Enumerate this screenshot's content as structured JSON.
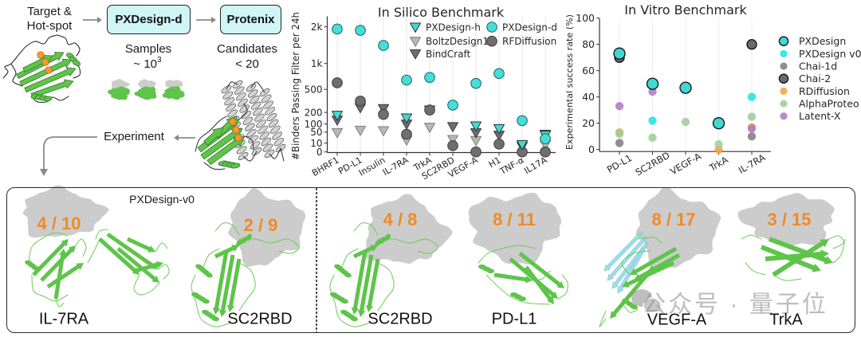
{
  "pipeline": {
    "target_line1": "Target &",
    "target_line2": "Hot-spot",
    "step1": "PXDesign-d",
    "step2": "Protenix",
    "samples_label": "Samples",
    "samples_value": "~ 10",
    "samples_exponent": "3",
    "candidates_label": "Candidates",
    "candidates_value": "< 20",
    "experiment_label": "Experiment"
  },
  "colors": {
    "box_fill": "#cff5f6",
    "arrow": "#8a8a8a",
    "hotspot": "#f39a2b",
    "binder_green": "#5ec44a",
    "target_gray": "#cccccc",
    "hit_fraction": "#f08a24",
    "vegf_partner": "#8fd9e6"
  },
  "results_panel": {
    "groups": [
      {
        "label": "PXDesign-v0",
        "items": [
          {
            "target": "IL-7RA",
            "hits_label": "4 / 10",
            "successes": 4,
            "tested": 10
          },
          {
            "target": "SC2RBD",
            "hits_label": "2 / 9",
            "successes": 2,
            "tested": 9
          }
        ]
      },
      {
        "label": null,
        "items": [
          {
            "target": "SC2RBD",
            "hits_label": "4 / 8",
            "successes": 4,
            "tested": 8
          },
          {
            "target": "PD-L1",
            "hits_label": "8 / 11",
            "successes": 8,
            "tested": 11
          },
          {
            "target": "VEGF-A",
            "hits_label": "8 / 17",
            "successes": 8,
            "tested": 17
          },
          {
            "target": "TrkA",
            "hits_label": "3 / 15",
            "successes": 3,
            "tested": 15
          }
        ]
      }
    ]
  },
  "watermark": {
    "icon": "wechat-icon",
    "text": "公众号 · 量子位"
  },
  "chart_data": [
    {
      "type": "scatter",
      "title": "In Silico Benchmark",
      "xlabel": "",
      "ylabel": "#Binders Passing Filter per 24h",
      "yscale": "sqrt",
      "ylim": [
        0,
        2350
      ],
      "yticks": [
        0,
        10,
        50,
        100,
        200,
        500,
        1000,
        2000
      ],
      "ytick_labels": [
        "0",
        "10",
        "50",
        "100",
        "200",
        "500",
        "1k",
        "2k"
      ],
      "categories": [
        "BHRF1",
        "PD-L1",
        "Insulin",
        "IL-7RA",
        "TrkA",
        "SC2RBD",
        "VEGF-A",
        "H1",
        "TNF-α",
        "IL17A"
      ],
      "grid": "vertical",
      "legend": "top-right",
      "series": [
        {
          "name": "PXDesign-h",
          "marker": "triangle-down",
          "color": "#3fdad6",
          "edge": "#2e2e2e",
          "values": [
            172,
            null,
            null,
            148,
            null,
            null,
            87,
            70,
            7,
            36
          ]
        },
        {
          "name": "BoltzDesign1",
          "marker": "triangle-down",
          "color": "#b8b8b8",
          "edge": "#7c7c7c",
          "values": [
            48,
            60,
            58,
            18,
            78,
            20,
            17,
            null,
            null,
            7
          ]
        },
        {
          "name": "BindCraft",
          "marker": "triangle-down",
          "color": "#6f6f6f",
          "edge": "#3a3a3a",
          "values": [
            130,
            250,
            240,
            100,
            225,
            82,
            48,
            36,
            4,
            40
          ]
        },
        {
          "name": "PXDesign-d",
          "marker": "circle",
          "color": "#43dfd8",
          "edge": "#1f5f5c",
          "values": [
            1930,
            1890,
            1450,
            660,
            710,
            280,
            600,
            785,
            125,
            22
          ]
        },
        {
          "name": "RFDiffusion",
          "marker": "circle",
          "color": "#6f6f6f",
          "edge": "#3a3a3a",
          "values": [
            610,
            330,
            180,
            40,
            225,
            5,
            0,
            8,
            0,
            0
          ]
        }
      ]
    },
    {
      "type": "scatter",
      "title": "In Vitro Benchmark",
      "xlabel": "",
      "ylabel": "Experimental success rate (%)",
      "ylim": [
        0,
        100
      ],
      "yticks": [
        0,
        20,
        40,
        60,
        80,
        100
      ],
      "ytick_labels": [
        "0",
        "20",
        "40",
        "60",
        "80",
        "100"
      ],
      "categories": [
        "PD-L1",
        "SC2RBD",
        "VEGF-A",
        "TrkA",
        "IL-7RA"
      ],
      "grid": "vertical",
      "legend": "right",
      "series": [
        {
          "name": "PXDesign",
          "color": "#3fd8d2",
          "edge": "#1a1a1a",
          "values": [
            73,
            50,
            47,
            20,
            null
          ]
        },
        {
          "name": "PXDesign v0",
          "color": "#22e3e6",
          "edge": null,
          "values": [
            null,
            22,
            null,
            null,
            40
          ]
        },
        {
          "name": "Chai-1d",
          "color": "#808080",
          "edge": null,
          "values": [
            5,
            null,
            null,
            null,
            10
          ]
        },
        {
          "name": "Chai-2",
          "color": "#6a6a6a",
          "edge": "#1a1a1a",
          "values": [
            70,
            null,
            null,
            null,
            80
          ]
        },
        {
          "name": "RDiffusion",
          "color": "#f7a03a",
          "edge": null,
          "values": [
            13,
            null,
            null,
            0,
            17
          ]
        },
        {
          "name": "AlphaProteo",
          "color": "#9fce98",
          "edge": null,
          "values": [
            12,
            9,
            21,
            4,
            25
          ]
        },
        {
          "name": "Latent-X",
          "color": "#b27ac6",
          "edge": null,
          "values": [
            33,
            44,
            null,
            null,
            16
          ]
        }
      ]
    }
  ]
}
